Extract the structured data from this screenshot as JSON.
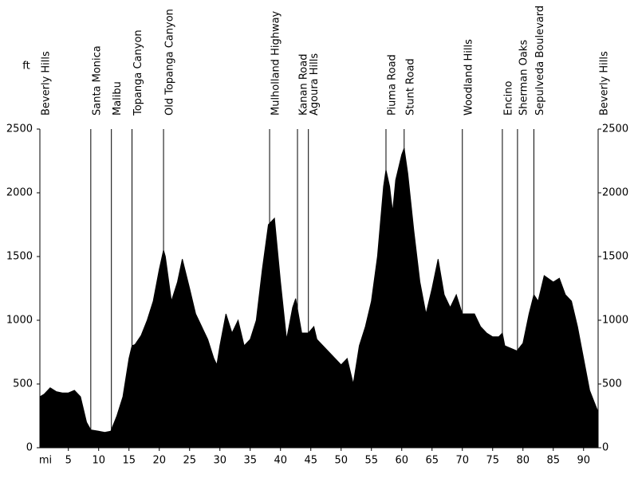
{
  "chart_data": {
    "type": "area",
    "y_label": "ft",
    "x_label": "mi",
    "color": "#000000",
    "x": [
      0.3,
      1,
      2,
      3,
      4,
      5,
      6,
      7,
      8,
      8.7,
      10,
      11,
      12,
      13,
      14,
      15,
      15.5,
      16,
      17,
      18,
      19,
      20,
      20.7,
      21,
      22,
      23,
      23.8,
      25,
      26,
      27,
      28,
      29,
      29.5,
      30,
      31,
      32,
      33,
      34,
      35,
      36,
      37,
      38,
      39,
      40,
      41,
      42,
      42.5,
      43.5,
      44.6,
      45.5,
      46,
      47,
      48,
      49,
      50,
      51,
      52,
      53,
      54,
      55,
      56,
      57,
      57.4,
      58,
      58.5,
      59,
      60,
      60.4,
      61,
      62,
      63,
      64,
      65,
      66,
      67,
      68,
      69,
      70,
      71,
      72,
      73,
      74,
      75,
      76,
      76.6,
      77,
      78,
      79,
      80,
      81,
      81.8,
      82.5,
      83.5,
      85,
      86,
      87,
      88,
      89,
      90,
      91,
      92.4
    ],
    "values": [
      400,
      420,
      470,
      440,
      430,
      430,
      450,
      400,
      200,
      140,
      130,
      120,
      130,
      250,
      400,
      700,
      800,
      810,
      880,
      1000,
      1150,
      1400,
      1550,
      1500,
      1150,
      1300,
      1480,
      1250,
      1050,
      950,
      850,
      700,
      650,
      800,
      1050,
      900,
      1000,
      800,
      850,
      1000,
      1400,
      1750,
      1800,
      1300,
      850,
      1100,
      1170,
      900,
      900,
      950,
      850,
      800,
      750,
      700,
      650,
      700,
      500,
      800,
      950,
      1150,
      1500,
      2050,
      2180,
      2050,
      1850,
      2100,
      2300,
      2350,
      2150,
      1700,
      1300,
      1050,
      1250,
      1480,
      1200,
      1100,
      1200,
      1050,
      1050,
      1050,
      950,
      900,
      870,
      870,
      900,
      800,
      780,
      760,
      820,
      1050,
      1200,
      1150,
      1350,
      1300,
      1330,
      1200,
      1150,
      950,
      700,
      450,
      280
    ],
    "markers": [
      {
        "name": "Beverly Hills",
        "x": 0.3
      },
      {
        "name": "Santa Monica",
        "x": 8.7
      },
      {
        "name": "Malibu",
        "x": 12.1
      },
      {
        "name": "Topanga Canyon",
        "x": 15.5
      },
      {
        "name": "Old Topanga Canyon",
        "x": 20.7
      },
      {
        "name": "Mulholland Highway",
        "x": 38.2
      },
      {
        "name": "Kanan Road",
        "x": 42.8
      },
      {
        "name": "Agoura Hills",
        "x": 44.6
      },
      {
        "name": "Piuma Road",
        "x": 57.4
      },
      {
        "name": "Stunt Road",
        "x": 60.4
      },
      {
        "name": "Woodland Hills",
        "x": 70.0
      },
      {
        "name": "Encino",
        "x": 76.6
      },
      {
        "name": "Sherman Oaks",
        "x": 79.1
      },
      {
        "name": "Sepulveda Boulevard",
        "x": 81.8
      },
      {
        "name": "Beverly Hills",
        "x": 92.4
      }
    ],
    "xlim": [
      0.3,
      92.4
    ],
    "xticks": [
      5,
      10,
      15,
      20,
      25,
      30,
      35,
      40,
      45,
      50,
      55,
      60,
      65,
      70,
      75,
      80,
      85,
      90
    ],
    "ylim": [
      0,
      2500
    ],
    "yticks": [
      0,
      500,
      1000,
      1500,
      2000,
      2500
    ],
    "right_axis": true
  }
}
